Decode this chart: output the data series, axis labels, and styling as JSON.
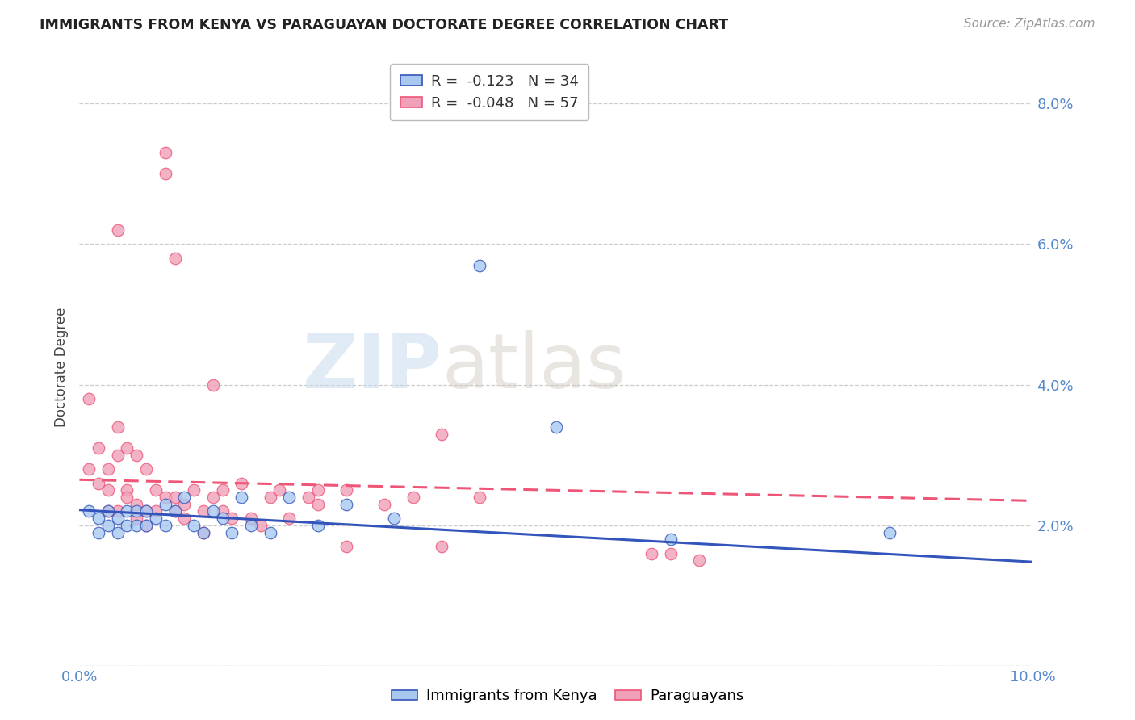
{
  "title": "IMMIGRANTS FROM KENYA VS PARAGUAYAN DOCTORATE DEGREE CORRELATION CHART",
  "source": "Source: ZipAtlas.com",
  "ylabel": "Doctorate Degree",
  "xlim": [
    0.0,
    0.1
  ],
  "ylim": [
    0.0,
    0.085
  ],
  "yticks": [
    0.0,
    0.02,
    0.04,
    0.06,
    0.08
  ],
  "ytick_labels": [
    "",
    "2.0%",
    "4.0%",
    "6.0%",
    "8.0%"
  ],
  "xticks": [
    0.0,
    0.025,
    0.05,
    0.075,
    0.1
  ],
  "xtick_labels": [
    "0.0%",
    "",
    "",
    "",
    "10.0%"
  ],
  "watermark_zip": "ZIP",
  "watermark_atlas": "atlas",
  "legend_entry1_label": "R =  -0.123   N = 34",
  "legend_entry2_label": "R =  -0.048   N = 57",
  "blue_color": "#A8C8F0",
  "pink_color": "#F0A0B8",
  "line_blue": "#3355BB",
  "line_pink": "#EE5577",
  "axis_color": "#5588CC",
  "kenya_x": [
    0.001,
    0.002,
    0.002,
    0.003,
    0.003,
    0.004,
    0.004,
    0.005,
    0.005,
    0.006,
    0.006,
    0.007,
    0.007,
    0.008,
    0.009,
    0.009,
    0.01,
    0.011,
    0.012,
    0.013,
    0.014,
    0.015,
    0.016,
    0.017,
    0.018,
    0.02,
    0.022,
    0.025,
    0.028,
    0.033,
    0.042,
    0.062,
    0.085,
    0.05
  ],
  "kenya_y": [
    0.022,
    0.021,
    0.019,
    0.022,
    0.02,
    0.021,
    0.019,
    0.022,
    0.02,
    0.022,
    0.02,
    0.022,
    0.02,
    0.021,
    0.023,
    0.02,
    0.022,
    0.024,
    0.02,
    0.019,
    0.022,
    0.021,
    0.019,
    0.024,
    0.02,
    0.019,
    0.024,
    0.02,
    0.023,
    0.021,
    0.057,
    0.018,
    0.019,
    0.034
  ],
  "paraguay_x": [
    0.001,
    0.001,
    0.002,
    0.002,
    0.003,
    0.003,
    0.003,
    0.004,
    0.004,
    0.004,
    0.005,
    0.005,
    0.005,
    0.006,
    0.006,
    0.006,
    0.007,
    0.007,
    0.007,
    0.008,
    0.008,
    0.009,
    0.009,
    0.009,
    0.01,
    0.01,
    0.011,
    0.011,
    0.012,
    0.013,
    0.013,
    0.014,
    0.015,
    0.015,
    0.016,
    0.017,
    0.018,
    0.019,
    0.02,
    0.021,
    0.022,
    0.024,
    0.025,
    0.025,
    0.028,
    0.028,
    0.032,
    0.035,
    0.038,
    0.042,
    0.06,
    0.062,
    0.065,
    0.038,
    0.004,
    0.01,
    0.014
  ],
  "paraguay_y": [
    0.038,
    0.028,
    0.031,
    0.026,
    0.028,
    0.025,
    0.022,
    0.03,
    0.022,
    0.034,
    0.025,
    0.031,
    0.024,
    0.03,
    0.023,
    0.021,
    0.028,
    0.022,
    0.02,
    0.025,
    0.022,
    0.073,
    0.07,
    0.024,
    0.024,
    0.022,
    0.021,
    0.023,
    0.025,
    0.022,
    0.019,
    0.024,
    0.025,
    0.022,
    0.021,
    0.026,
    0.021,
    0.02,
    0.024,
    0.025,
    0.021,
    0.024,
    0.025,
    0.023,
    0.025,
    0.017,
    0.023,
    0.024,
    0.017,
    0.024,
    0.016,
    0.016,
    0.015,
    0.033,
    0.062,
    0.058,
    0.04
  ],
  "blue_line_x0": 0.0,
  "blue_line_x1": 0.1,
  "blue_line_y0": 0.0222,
  "blue_line_y1": 0.0148,
  "pink_line_x0": 0.0,
  "pink_line_x1": 0.1,
  "pink_line_y0": 0.0265,
  "pink_line_y1": 0.0235
}
